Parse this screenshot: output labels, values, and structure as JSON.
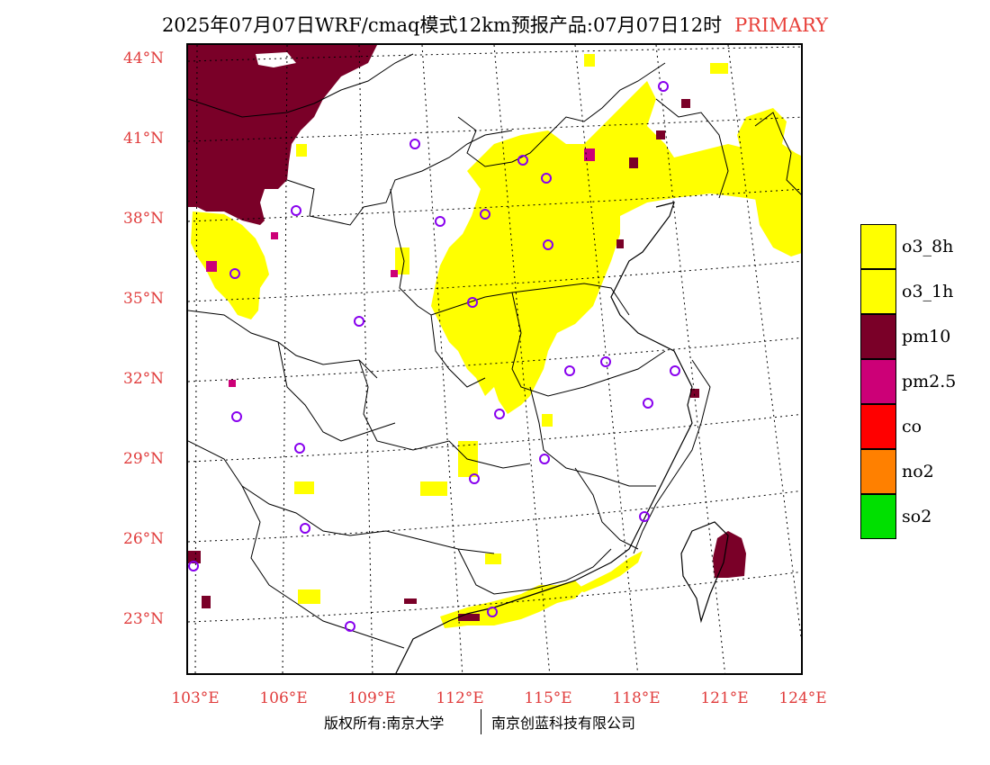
{
  "header": {
    "title": "2025年07月07日WRF/cmaq模式12km预报产品:07月07日12时",
    "tag": "PRIMARY"
  },
  "axes": {
    "lat_labels": [
      "44°N",
      "41°N",
      "38°N",
      "35°N",
      "32°N",
      "29°N",
      "26°N",
      "23°N"
    ],
    "lon_labels": [
      "103°E",
      "106°E",
      "109°E",
      "112°E",
      "115°E",
      "118°E",
      "121°E",
      "124°E"
    ]
  },
  "legend": {
    "items": [
      {
        "label": "o3_8h",
        "color": "#ffff00"
      },
      {
        "label": "o3_1h",
        "color": "#ffff00"
      },
      {
        "label": "pm10",
        "color": "#7a0028"
      },
      {
        "label": "pm2.5",
        "color": "#cc0077"
      },
      {
        "label": "co",
        "color": "#ff0000"
      },
      {
        "label": "no2",
        "color": "#ff8000"
      },
      {
        "label": "so2",
        "color": "#00e000"
      }
    ]
  },
  "footer": {
    "copyright": "版权所有:南京大学",
    "company": "南京创蓝科技有限公司"
  },
  "colors": {
    "o3": "#ffff00",
    "pm10": "#7a0028",
    "pm25": "#cc0077",
    "station": "#8800ee",
    "axis_label": "#e03b3b"
  }
}
